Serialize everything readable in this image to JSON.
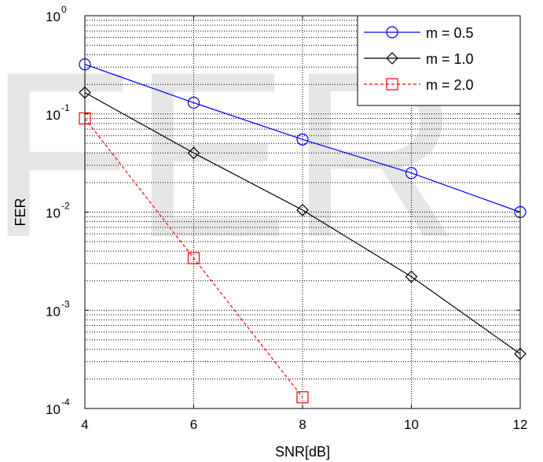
{
  "watermark": "FER",
  "chart_data": {
    "type": "line",
    "xlabel": "SNR[dB]",
    "ylabel": "FER",
    "xlim": [
      4,
      12
    ],
    "ylim": [
      0.0001,
      1
    ],
    "yscale": "log",
    "grid": true,
    "legend_position": "top-right",
    "x_ticks": [
      4,
      6,
      8,
      10,
      12
    ],
    "x_tick_labels": [
      "4",
      "6",
      "8",
      "10",
      "12"
    ],
    "y_ticks": [
      0.0001,
      0.001,
      0.01,
      0.1,
      1
    ],
    "y_tick_labels": [
      {
        "base": "10",
        "exp": "-4"
      },
      {
        "base": "10",
        "exp": "-3"
      },
      {
        "base": "10",
        "exp": "-2"
      },
      {
        "base": "10",
        "exp": "-1"
      },
      {
        "base": "10",
        "exp": "0"
      }
    ],
    "series": [
      {
        "name": "m = 0.5",
        "color": "#0000ff",
        "marker": "circle",
        "dash": "solid",
        "x": [
          4,
          6,
          8,
          10,
          12
        ],
        "y": [
          0.32,
          0.13,
          0.055,
          0.025,
          0.01
        ]
      },
      {
        "name": "m = 1.0",
        "color": "#000000",
        "marker": "diamond",
        "dash": "solid",
        "x": [
          4,
          6,
          8,
          10,
          12
        ],
        "y": [
          0.165,
          0.04,
          0.0105,
          0.0022,
          0.00036
        ]
      },
      {
        "name": "m = 2.0",
        "color": "#ff0000",
        "marker": "square",
        "dash": "dashed",
        "x": [
          4,
          6,
          8
        ],
        "y": [
          0.09,
          0.0034,
          0.00013
        ]
      }
    ]
  }
}
